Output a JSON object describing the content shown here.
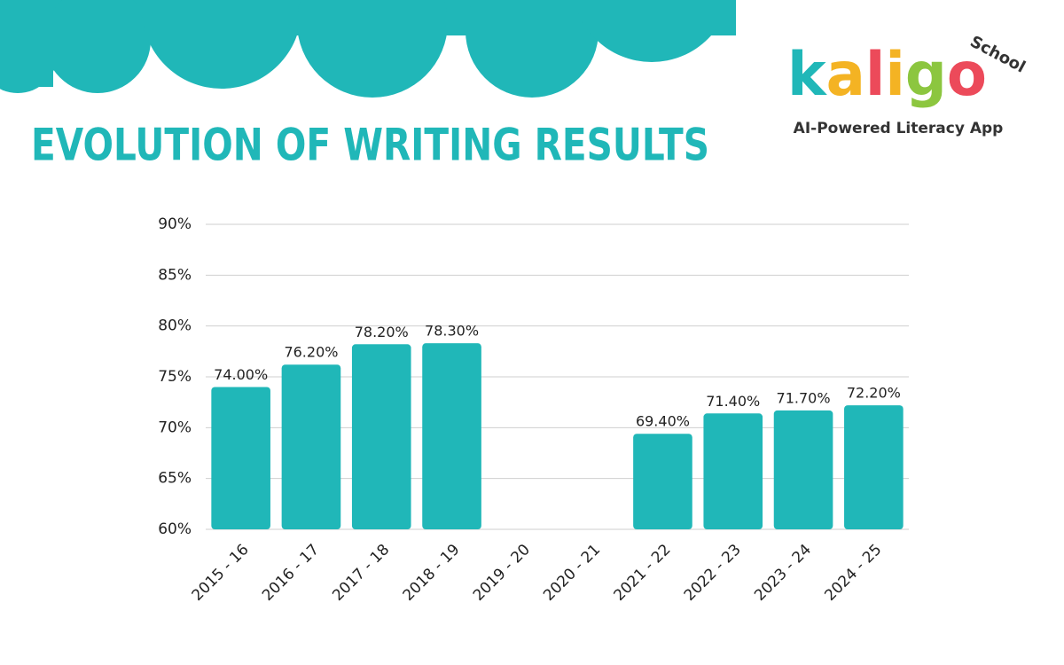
{
  "chart_data": {
    "type": "bar",
    "title": "EVOLUTION OF WRITING RESULTS",
    "categories": [
      "2015 - 16",
      "2016 - 17",
      "2017 - 18",
      "2018 - 19",
      "2019 - 20",
      "2020 - 21",
      "2021 - 22",
      "2022 - 23",
      "2023 - 24",
      "2024 - 25"
    ],
    "values": [
      74.0,
      76.2,
      78.2,
      78.3,
      null,
      null,
      69.4,
      71.4,
      71.7,
      72.2
    ],
    "value_labels": [
      "74.00%",
      "76.20%",
      "78.20%",
      "78.30%",
      null,
      null,
      "69.40%",
      "71.40%",
      "71.70%",
      "72.20%"
    ],
    "color": "#20b7b8",
    "ylim": [
      60,
      90
    ],
    "yticks": [
      {
        "value": 60,
        "label": "60%"
      },
      {
        "value": 65,
        "label": "65%"
      },
      {
        "value": 70,
        "label": "70%"
      },
      {
        "value": 75,
        "label": "75%"
      },
      {
        "value": 80,
        "label": "80%"
      },
      {
        "value": 85,
        "label": "85%"
      },
      {
        "value": 90,
        "label": "90%"
      }
    ],
    "grid": true
  },
  "logo": {
    "name": "kaligo",
    "badge": "School",
    "tagline": "AI-Powered Literacy App"
  }
}
